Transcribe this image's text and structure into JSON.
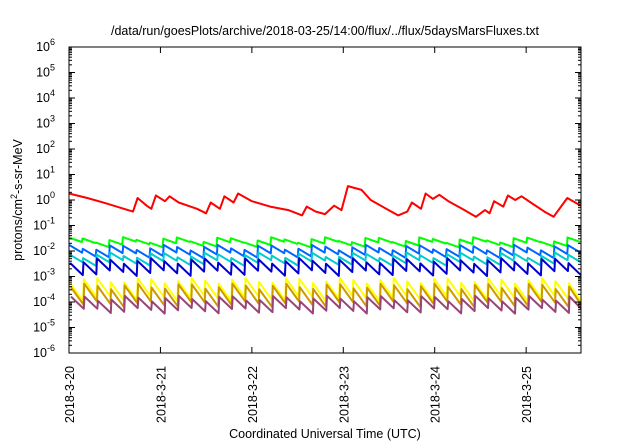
{
  "chart_data": {
    "type": "line",
    "title": "/data/run/goesPlots/archive/2018-03-25/14:00/flux/../flux/5daysMarsFluxes.txt",
    "xlabel": "Coordinated Universal Time (UTC)",
    "ylabel": {
      "pre": "protons/cm",
      "sup": "2",
      "post": "-s-sr-MeV"
    },
    "yscale": "log",
    "ylim_exponent": [
      -6,
      6
    ],
    "y_ticks": [
      {
        "base": "10",
        "exp": "-6"
      },
      {
        "base": "10",
        "exp": "-5"
      },
      {
        "base": "10",
        "exp": "-4"
      },
      {
        "base": "10",
        "exp": "-3"
      },
      {
        "base": "10",
        "exp": "-2"
      },
      {
        "base": "10",
        "exp": "-1"
      },
      {
        "base": "10",
        "exp": "0"
      },
      {
        "base": "10",
        "exp": "1"
      },
      {
        "base": "10",
        "exp": "2"
      },
      {
        "base": "10",
        "exp": "3"
      },
      {
        "base": "10",
        "exp": "4"
      },
      {
        "base": "10",
        "exp": "5"
      },
      {
        "base": "10",
        "exp": "6"
      }
    ],
    "x_tick_labels": [
      "2018-3-20",
      "2018-3-21",
      "2018-3-22",
      "2018-3-23",
      "2018-3-24",
      "2018-3-25"
    ],
    "xlim_days": [
      0,
      5.6
    ],
    "grid": false,
    "legend": "none",
    "series": [
      {
        "color": "#ff0000",
        "points": [
          [
            0,
            1.8
          ],
          [
            0.2,
            1.2
          ],
          [
            0.4,
            0.75
          ],
          [
            0.6,
            0.45
          ],
          [
            0.7,
            0.35
          ],
          [
            0.75,
            1.2
          ],
          [
            0.85,
            0.6
          ],
          [
            0.9,
            0.45
          ],
          [
            0.95,
            1.5
          ],
          [
            1.05,
            0.9
          ],
          [
            1.1,
            1.4
          ],
          [
            1.2,
            0.8
          ],
          [
            1.3,
            0.6
          ],
          [
            1.4,
            0.45
          ],
          [
            1.5,
            0.3
          ],
          [
            1.55,
            0.8
          ],
          [
            1.65,
            0.45
          ],
          [
            1.7,
            1.4
          ],
          [
            1.8,
            0.8
          ],
          [
            1.85,
            1.8
          ],
          [
            2.0,
            0.9
          ],
          [
            2.2,
            0.55
          ],
          [
            2.4,
            0.4
          ],
          [
            2.55,
            0.25
          ],
          [
            2.6,
            0.55
          ],
          [
            2.7,
            0.35
          ],
          [
            2.8,
            0.28
          ],
          [
            2.9,
            0.6
          ],
          [
            2.98,
            0.4
          ],
          [
            3.05,
            3.5
          ],
          [
            3.2,
            2.5
          ],
          [
            3.3,
            1.0
          ],
          [
            3.45,
            0.5
          ],
          [
            3.6,
            0.25
          ],
          [
            3.7,
            0.35
          ],
          [
            3.75,
            0.8
          ],
          [
            3.85,
            0.45
          ],
          [
            3.9,
            1.8
          ],
          [
            3.98,
            1.1
          ],
          [
            4.05,
            1.6
          ],
          [
            4.15,
            0.9
          ],
          [
            4.3,
            0.45
          ],
          [
            4.45,
            0.22
          ],
          [
            4.55,
            0.4
          ],
          [
            4.6,
            0.3
          ],
          [
            4.65,
            0.9
          ],
          [
            4.75,
            0.55
          ],
          [
            4.8,
            1.5
          ],
          [
            4.88,
            1.0
          ],
          [
            4.95,
            1.4
          ],
          [
            5.05,
            0.8
          ],
          [
            5.2,
            0.35
          ],
          [
            5.3,
            0.22
          ],
          [
            5.45,
            1.2
          ],
          [
            5.6,
            0.6
          ]
        ]
      },
      {
        "color": "#00ff00",
        "base": 0.02,
        "depth": 1.5,
        "phase": 0.0
      },
      {
        "color": "#0066ff",
        "base": 0.01,
        "depth": 2.0,
        "phase": 0.1
      },
      {
        "color": "#00cccc",
        "base": 0.005,
        "depth": 2.0,
        "phase": 0.2
      },
      {
        "color": "#0000cc",
        "base": 0.003,
        "depth": 3.0,
        "phase": 0.3
      },
      {
        "color": "#ffff00",
        "base": 0.0005,
        "depth": 5.0,
        "phase": 0.4
      },
      {
        "color": "#cc9900",
        "base": 0.0003,
        "depth": 5.0,
        "phase": 0.5
      },
      {
        "color": "#994477",
        "base": 0.0001,
        "depth": 3.0,
        "phase": 0.6
      }
    ],
    "periodic_cycles": 38
  }
}
